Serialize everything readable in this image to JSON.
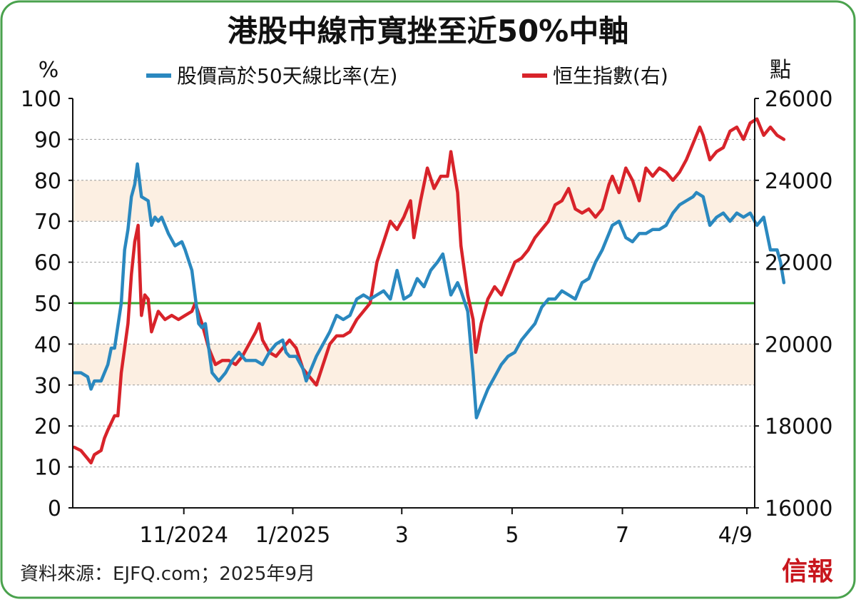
{
  "chart_data": {
    "type": "line",
    "title": "港股中線市寬挫至近50%中軸",
    "left_axis": {
      "unit": "%",
      "ylim": [
        0,
        100
      ],
      "ticks": [
        "0",
        "10",
        "20",
        "30",
        "40",
        "50",
        "60",
        "70",
        "80",
        "90",
        "100"
      ]
    },
    "right_axis": {
      "unit": "點",
      "ylim": [
        16000,
        26000
      ],
      "ticks": [
        "16000",
        "18000",
        "20000",
        "22000",
        "24000",
        "26000"
      ]
    },
    "x_labels": [
      {
        "label": "11/2024",
        "t": 0.163
      },
      {
        "label": "1/2025",
        "t": 0.325
      },
      {
        "label": "3",
        "t": 0.487
      },
      {
        "label": "5",
        "t": 0.651
      },
      {
        "label": "7",
        "t": 0.815
      },
      {
        "label": "4/9",
        "t": 1.0
      }
    ],
    "bands": [
      {
        "from": 30,
        "to": 40
      },
      {
        "from": 70,
        "to": 80
      }
    ],
    "reference_line": {
      "value": 50,
      "color": "#3aaa35"
    },
    "legend_position": "top",
    "series": [
      {
        "name": "股價高於50天線比率(左)",
        "axis": "left",
        "color": "#2a88bf",
        "points": [
          [
            0.0,
            33
          ],
          [
            0.01,
            33
          ],
          [
            0.02,
            32
          ],
          [
            0.025,
            29
          ],
          [
            0.03,
            31
          ],
          [
            0.04,
            31
          ],
          [
            0.05,
            35
          ],
          [
            0.055,
            39
          ],
          [
            0.06,
            39
          ],
          [
            0.07,
            50
          ],
          [
            0.075,
            63
          ],
          [
            0.08,
            68
          ],
          [
            0.085,
            76
          ],
          [
            0.09,
            79
          ],
          [
            0.094,
            84
          ],
          [
            0.1,
            76
          ],
          [
            0.11,
            75
          ],
          [
            0.115,
            69
          ],
          [
            0.12,
            71
          ],
          [
            0.125,
            70
          ],
          [
            0.13,
            71
          ],
          [
            0.14,
            67
          ],
          [
            0.15,
            64
          ],
          [
            0.16,
            65
          ],
          [
            0.165,
            63
          ],
          [
            0.175,
            58
          ],
          [
            0.185,
            45
          ],
          [
            0.19,
            44
          ],
          [
            0.195,
            45
          ],
          [
            0.205,
            33
          ],
          [
            0.215,
            31
          ],
          [
            0.225,
            33
          ],
          [
            0.235,
            36
          ],
          [
            0.245,
            38
          ],
          [
            0.255,
            36
          ],
          [
            0.265,
            36
          ],
          [
            0.27,
            36
          ],
          [
            0.28,
            35
          ],
          [
            0.29,
            38
          ],
          [
            0.3,
            40
          ],
          [
            0.31,
            41
          ],
          [
            0.315,
            38
          ],
          [
            0.32,
            37
          ],
          [
            0.33,
            37
          ],
          [
            0.34,
            34
          ],
          [
            0.345,
            31
          ],
          [
            0.35,
            33
          ],
          [
            0.36,
            37
          ],
          [
            0.37,
            40
          ],
          [
            0.38,
            43
          ],
          [
            0.39,
            47
          ],
          [
            0.4,
            46
          ],
          [
            0.41,
            47
          ],
          [
            0.42,
            51
          ],
          [
            0.43,
            52
          ],
          [
            0.44,
            51
          ],
          [
            0.45,
            52
          ],
          [
            0.46,
            53
          ],
          [
            0.47,
            51
          ],
          [
            0.48,
            58
          ],
          [
            0.49,
            51
          ],
          [
            0.5,
            52
          ],
          [
            0.51,
            56
          ],
          [
            0.52,
            54
          ],
          [
            0.53,
            58
          ],
          [
            0.54,
            60
          ],
          [
            0.548,
            62
          ],
          [
            0.56,
            52
          ],
          [
            0.57,
            55
          ],
          [
            0.575,
            53
          ],
          [
            0.585,
            48
          ],
          [
            0.593,
            33
          ],
          [
            0.598,
            22
          ],
          [
            0.605,
            25
          ],
          [
            0.615,
            29
          ],
          [
            0.625,
            32
          ],
          [
            0.635,
            35
          ],
          [
            0.645,
            37
          ],
          [
            0.655,
            38
          ],
          [
            0.665,
            41
          ],
          [
            0.675,
            43
          ],
          [
            0.685,
            45
          ],
          [
            0.695,
            49
          ],
          [
            0.705,
            51
          ],
          [
            0.715,
            51
          ],
          [
            0.725,
            53
          ],
          [
            0.735,
            52
          ],
          [
            0.745,
            51
          ],
          [
            0.755,
            55
          ],
          [
            0.765,
            56
          ],
          [
            0.775,
            60
          ],
          [
            0.785,
            63
          ],
          [
            0.795,
            67
          ],
          [
            0.8,
            69
          ],
          [
            0.81,
            70
          ],
          [
            0.82,
            66
          ],
          [
            0.83,
            65
          ],
          [
            0.84,
            67
          ],
          [
            0.85,
            67
          ],
          [
            0.86,
            68
          ],
          [
            0.87,
            68
          ],
          [
            0.88,
            69
          ],
          [
            0.89,
            72
          ],
          [
            0.9,
            74
          ],
          [
            0.91,
            75
          ],
          [
            0.92,
            76
          ],
          [
            0.925,
            77
          ],
          [
            0.935,
            76
          ],
          [
            0.945,
            69
          ],
          [
            0.955,
            71
          ],
          [
            0.965,
            72
          ],
          [
            0.975,
            70
          ],
          [
            0.985,
            72
          ],
          [
            0.995,
            71
          ],
          [
            1.005,
            72
          ],
          [
            1.015,
            69
          ],
          [
            1.025,
            71
          ],
          [
            1.035,
            63
          ],
          [
            1.045,
            63
          ],
          [
            1.05,
            60
          ],
          [
            1.055,
            55
          ]
        ]
      },
      {
        "name": "恒生指數(右)",
        "axis": "right",
        "color": "#d8232a",
        "points": [
          [
            0.0,
            17480
          ],
          [
            0.01,
            17400
          ],
          [
            0.02,
            17200
          ],
          [
            0.025,
            17100
          ],
          [
            0.03,
            17300
          ],
          [
            0.04,
            17400
          ],
          [
            0.045,
            17700
          ],
          [
            0.05,
            17900
          ],
          [
            0.06,
            18250
          ],
          [
            0.065,
            18250
          ],
          [
            0.07,
            19300
          ],
          [
            0.08,
            20500
          ],
          [
            0.085,
            21700
          ],
          [
            0.09,
            22500
          ],
          [
            0.095,
            22900
          ],
          [
            0.1,
            20700
          ],
          [
            0.105,
            21200
          ],
          [
            0.11,
            21100
          ],
          [
            0.115,
            20300
          ],
          [
            0.125,
            20800
          ],
          [
            0.135,
            20600
          ],
          [
            0.145,
            20700
          ],
          [
            0.155,
            20600
          ],
          [
            0.165,
            20700
          ],
          [
            0.175,
            20800
          ],
          [
            0.18,
            21000
          ],
          [
            0.19,
            20500
          ],
          [
            0.2,
            19900
          ],
          [
            0.21,
            19500
          ],
          [
            0.22,
            19600
          ],
          [
            0.23,
            19600
          ],
          [
            0.24,
            19500
          ],
          [
            0.25,
            19700
          ],
          [
            0.26,
            20000
          ],
          [
            0.27,
            20300
          ],
          [
            0.275,
            20500
          ],
          [
            0.28,
            20100
          ],
          [
            0.29,
            19800
          ],
          [
            0.3,
            19700
          ],
          [
            0.31,
            19900
          ],
          [
            0.32,
            20100
          ],
          [
            0.33,
            19900
          ],
          [
            0.34,
            19400
          ],
          [
            0.35,
            19200
          ],
          [
            0.36,
            19000
          ],
          [
            0.37,
            19500
          ],
          [
            0.38,
            20000
          ],
          [
            0.39,
            20200
          ],
          [
            0.4,
            20200
          ],
          [
            0.41,
            20300
          ],
          [
            0.42,
            20600
          ],
          [
            0.43,
            20800
          ],
          [
            0.44,
            21000
          ],
          [
            0.45,
            22000
          ],
          [
            0.46,
            22500
          ],
          [
            0.47,
            23000
          ],
          [
            0.48,
            22800
          ],
          [
            0.49,
            23100
          ],
          [
            0.5,
            23500
          ],
          [
            0.505,
            22600
          ],
          [
            0.515,
            23500
          ],
          [
            0.525,
            24300
          ],
          [
            0.535,
            23800
          ],
          [
            0.545,
            24100
          ],
          [
            0.555,
            24100
          ],
          [
            0.56,
            24700
          ],
          [
            0.57,
            23700
          ],
          [
            0.575,
            22400
          ],
          [
            0.585,
            21200
          ],
          [
            0.593,
            20600
          ],
          [
            0.597,
            19800
          ],
          [
            0.605,
            20500
          ],
          [
            0.615,
            21100
          ],
          [
            0.625,
            21400
          ],
          [
            0.635,
            21200
          ],
          [
            0.645,
            21600
          ],
          [
            0.655,
            22000
          ],
          [
            0.665,
            22100
          ],
          [
            0.675,
            22300
          ],
          [
            0.685,
            22600
          ],
          [
            0.695,
            22800
          ],
          [
            0.705,
            23000
          ],
          [
            0.715,
            23400
          ],
          [
            0.725,
            23500
          ],
          [
            0.735,
            23800
          ],
          [
            0.745,
            23300
          ],
          [
            0.755,
            23200
          ],
          [
            0.765,
            23300
          ],
          [
            0.775,
            23100
          ],
          [
            0.785,
            23300
          ],
          [
            0.795,
            23900
          ],
          [
            0.8,
            24100
          ],
          [
            0.81,
            23700
          ],
          [
            0.82,
            24300
          ],
          [
            0.83,
            24000
          ],
          [
            0.84,
            23500
          ],
          [
            0.85,
            24300
          ],
          [
            0.86,
            24100
          ],
          [
            0.87,
            24300
          ],
          [
            0.88,
            24200
          ],
          [
            0.89,
            24000
          ],
          [
            0.9,
            24200
          ],
          [
            0.91,
            24500
          ],
          [
            0.92,
            24900
          ],
          [
            0.93,
            25300
          ],
          [
            0.935,
            25100
          ],
          [
            0.945,
            24500
          ],
          [
            0.955,
            24700
          ],
          [
            0.965,
            24800
          ],
          [
            0.975,
            25200
          ],
          [
            0.985,
            25300
          ],
          [
            0.995,
            25000
          ],
          [
            1.005,
            25400
          ],
          [
            1.015,
            25500
          ],
          [
            1.025,
            25100
          ],
          [
            1.035,
            25300
          ],
          [
            1.045,
            25100
          ],
          [
            1.055,
            25000
          ]
        ]
      }
    ],
    "source": "資料來源：EJFQ.com；2025年9月",
    "publisher": "信報"
  }
}
